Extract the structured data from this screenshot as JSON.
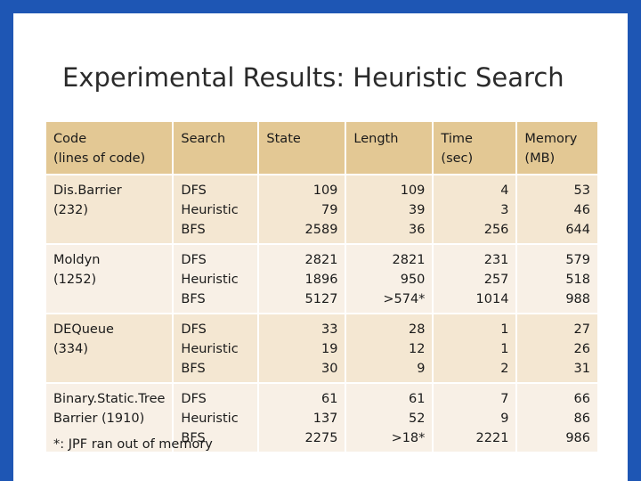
{
  "title": "Experimental Results: Heuristic Search",
  "table": {
    "headers": [
      [
        "Code",
        "(lines of code)"
      ],
      [
        "Search"
      ],
      [
        "State"
      ],
      [
        "Length"
      ],
      [
        "Time",
        "(sec)"
      ],
      [
        "Memory",
        "(MB)"
      ]
    ],
    "rows": [
      {
        "code": [
          "Dis.Barrier",
          "(232)"
        ],
        "search": [
          "DFS",
          "Heuristic",
          "BFS"
        ],
        "state": [
          "109",
          "79",
          "2589"
        ],
        "length": [
          "109",
          "39",
          "36"
        ],
        "time": [
          "4",
          "3",
          "256"
        ],
        "memory": [
          "53",
          "46",
          "644"
        ]
      },
      {
        "code": [
          "Moldyn",
          "(1252)"
        ],
        "search": [
          "DFS",
          "Heuristic",
          "BFS"
        ],
        "state": [
          "2821",
          "1896",
          "5127"
        ],
        "length": [
          "2821",
          "950",
          ">574*"
        ],
        "time": [
          "231",
          "257",
          "1014"
        ],
        "memory": [
          "579",
          "518",
          "988"
        ]
      },
      {
        "code": [
          "DEQueue",
          "(334)"
        ],
        "search": [
          "DFS",
          "Heuristic",
          "BFS"
        ],
        "state": [
          "33",
          "19",
          "30"
        ],
        "length": [
          "28",
          "12",
          "9"
        ],
        "time": [
          "1",
          "1",
          "2"
        ],
        "memory": [
          "27",
          "26",
          "31"
        ]
      },
      {
        "code": [
          "Binary.Static.Tree",
          "Barrier (1910)"
        ],
        "search": [
          "DFS",
          "Heuristic",
          "BFS"
        ],
        "state": [
          "61",
          "137",
          "2275"
        ],
        "length": [
          "61",
          "52",
          ">18*"
        ],
        "time": [
          "7",
          "9",
          "2221"
        ],
        "memory": [
          "66",
          "86",
          "986"
        ]
      }
    ]
  },
  "footnote": "*: JPF ran out of memory"
}
